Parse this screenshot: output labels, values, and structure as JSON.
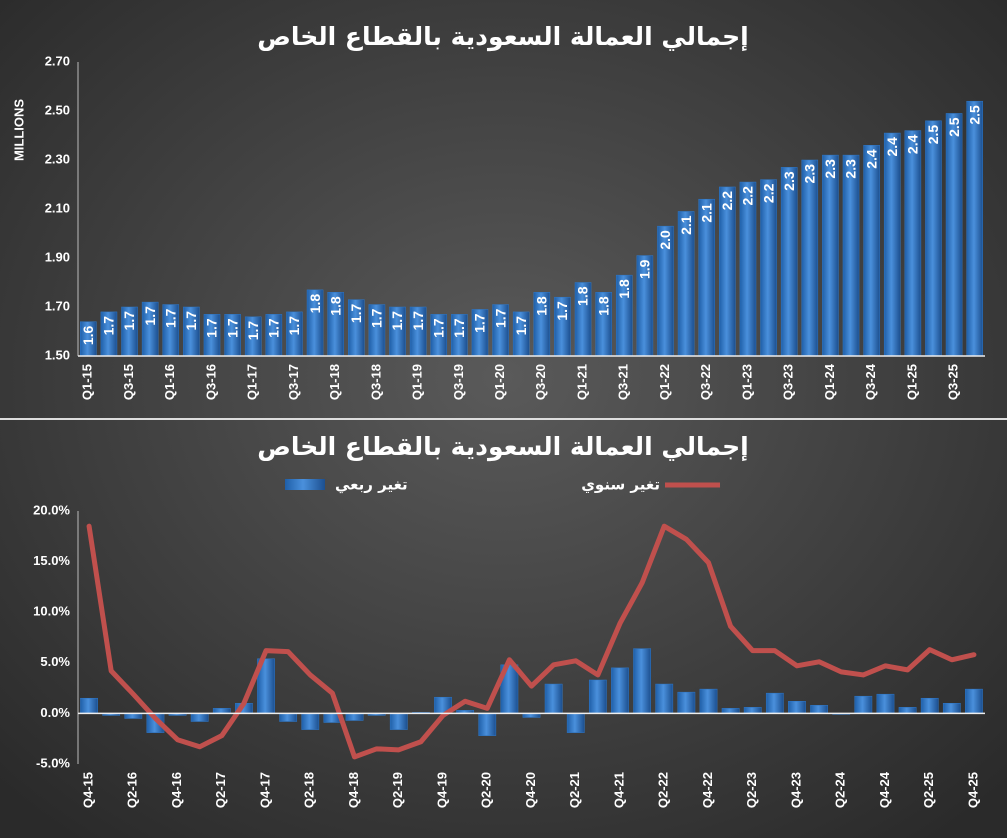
{
  "chart_data": [
    {
      "type": "bar",
      "title": "إجمالي العمالة السعودية بالقطاع الخاص",
      "y_label": "MILLIONS",
      "categories": [
        "Q1-15",
        null,
        "Q3-15",
        null,
        "Q1-16",
        null,
        "Q3-16",
        null,
        "Q1-17",
        null,
        "Q3-17",
        null,
        "Q1-18",
        null,
        "Q3-18",
        null,
        "Q1-19",
        null,
        "Q3-19",
        null,
        "Q1-20",
        null,
        "Q3-20",
        null,
        "Q1-21",
        null,
        "Q3-21",
        null,
        "Q1-22",
        null,
        "Q3-22",
        null,
        "Q1-23",
        null,
        "Q3-23",
        null,
        "Q1-24",
        null,
        "Q3-24",
        null,
        "Q1-25",
        null,
        "Q3-25",
        null
      ],
      "values": [
        1.64,
        1.68,
        1.7,
        1.72,
        1.71,
        1.7,
        1.67,
        1.67,
        1.66,
        1.67,
        1.68,
        1.77,
        1.76,
        1.73,
        1.71,
        1.7,
        1.7,
        1.67,
        1.67,
        1.69,
        1.71,
        1.68,
        1.76,
        1.74,
        1.8,
        1.76,
        1.83,
        1.91,
        2.03,
        2.09,
        2.14,
        2.19,
        2.21,
        2.22,
        2.27,
        2.3,
        2.32,
        2.32,
        2.36,
        2.41,
        2.42,
        2.46,
        2.49,
        2.54
      ],
      "value_labels": [
        "1.6",
        "1.7",
        "1.7",
        "1.7",
        "1.7",
        "1.7",
        "1.7",
        "1.7",
        "1.7",
        "1.7",
        "1.7",
        "1.8",
        "1.8",
        "1.7",
        "1.7",
        "1.7",
        "1.7",
        "1.7",
        "1.7",
        "1.7",
        "1.7",
        "1.7",
        "1.8",
        "1.7",
        "1.8",
        "1.8",
        "1.8",
        "1.9",
        "2.0",
        "2.1",
        "2.1",
        "2.2",
        "2.2",
        "2.2",
        "2.3",
        "2.3",
        "2.3",
        "2.3",
        "2.4",
        "2.4",
        "2.4",
        "2.5",
        "2.5",
        "2.5"
      ],
      "color": "#2f78c8",
      "ylim": [
        1.5,
        2.7
      ],
      "yticks": [
        {
          "value": 1.5,
          "label": "1.50"
        },
        {
          "value": 1.7,
          "label": "1.70"
        },
        {
          "value": 1.9,
          "label": "1.90"
        },
        {
          "value": 2.1,
          "label": "2.10"
        },
        {
          "value": 2.3,
          "label": "2.30"
        },
        {
          "value": 2.5,
          "label": "2.50"
        },
        {
          "value": 2.7,
          "label": "2.70"
        }
      ],
      "grid": false
    },
    {
      "type": "combo",
      "title": "إجمالي العمالة السعودية بالقطاع الخاص",
      "categories": [
        "Q4-15",
        null,
        "Q2-16",
        null,
        "Q4-16",
        null,
        "Q2-17",
        null,
        "Q4-17",
        null,
        "Q2-18",
        null,
        "Q4-18",
        null,
        "Q2-19",
        null,
        "Q4-19",
        null,
        "Q2-20",
        null,
        "Q4-20",
        null,
        "Q2-21",
        null,
        "Q4-21",
        null,
        "Q2-22",
        null,
        "Q4-22",
        null,
        "Q2-23",
        null,
        "Q4-23",
        null,
        "Q2-24",
        null,
        "Q4-24",
        null,
        "Q2-25",
        null,
        "Q4-25"
      ],
      "series": [
        {
          "name": "تغير ربعي",
          "type": "bar",
          "color": "#2f78c8",
          "values": [
            1.5,
            -0.2,
            -0.5,
            -1.9,
            -0.2,
            -0.8,
            0.5,
            1.0,
            5.4,
            -0.8,
            -1.6,
            -0.9,
            -0.7,
            -0.2,
            -1.6,
            0.1,
            1.6,
            0.3,
            -2.2,
            4.8,
            -0.4,
            2.9,
            -1.9,
            3.3,
            4.5,
            6.4,
            2.9,
            2.1,
            2.4,
            0.5,
            0.6,
            2.0,
            1.2,
            0.8,
            -0.1,
            1.7,
            1.9,
            0.6,
            1.5,
            1.0,
            2.4
          ]
        },
        {
          "name": "تغير سنوي",
          "type": "line",
          "color": "#c0504d",
          "values": [
            18.5,
            4.2,
            1.9,
            -0.5,
            -2.6,
            -3.3,
            -2.2,
            1.0,
            6.2,
            6.1,
            3.8,
            2.0,
            -4.3,
            -3.5,
            -3.6,
            -2.8,
            -0.2,
            1.2,
            0.5,
            5.3,
            2.7,
            4.8,
            5.2,
            3.8,
            8.9,
            12.9,
            18.5,
            17.2,
            14.9,
            8.6,
            6.2,
            6.2,
            4.7,
            5.1,
            4.1,
            3.8,
            4.7,
            4.3,
            6.3,
            5.3,
            5.8
          ]
        }
      ],
      "ylim": [
        -5,
        20
      ],
      "yticks": [
        {
          "value": -5,
          "label": "-5.0%"
        },
        {
          "value": 0,
          "label": "0.0%"
        },
        {
          "value": 5,
          "label": "5.0%"
        },
        {
          "value": 10,
          "label": "10.0%"
        },
        {
          "value": 15,
          "label": "15.0%"
        },
        {
          "value": 20,
          "label": "20.0%"
        }
      ],
      "grid": false
    }
  ]
}
